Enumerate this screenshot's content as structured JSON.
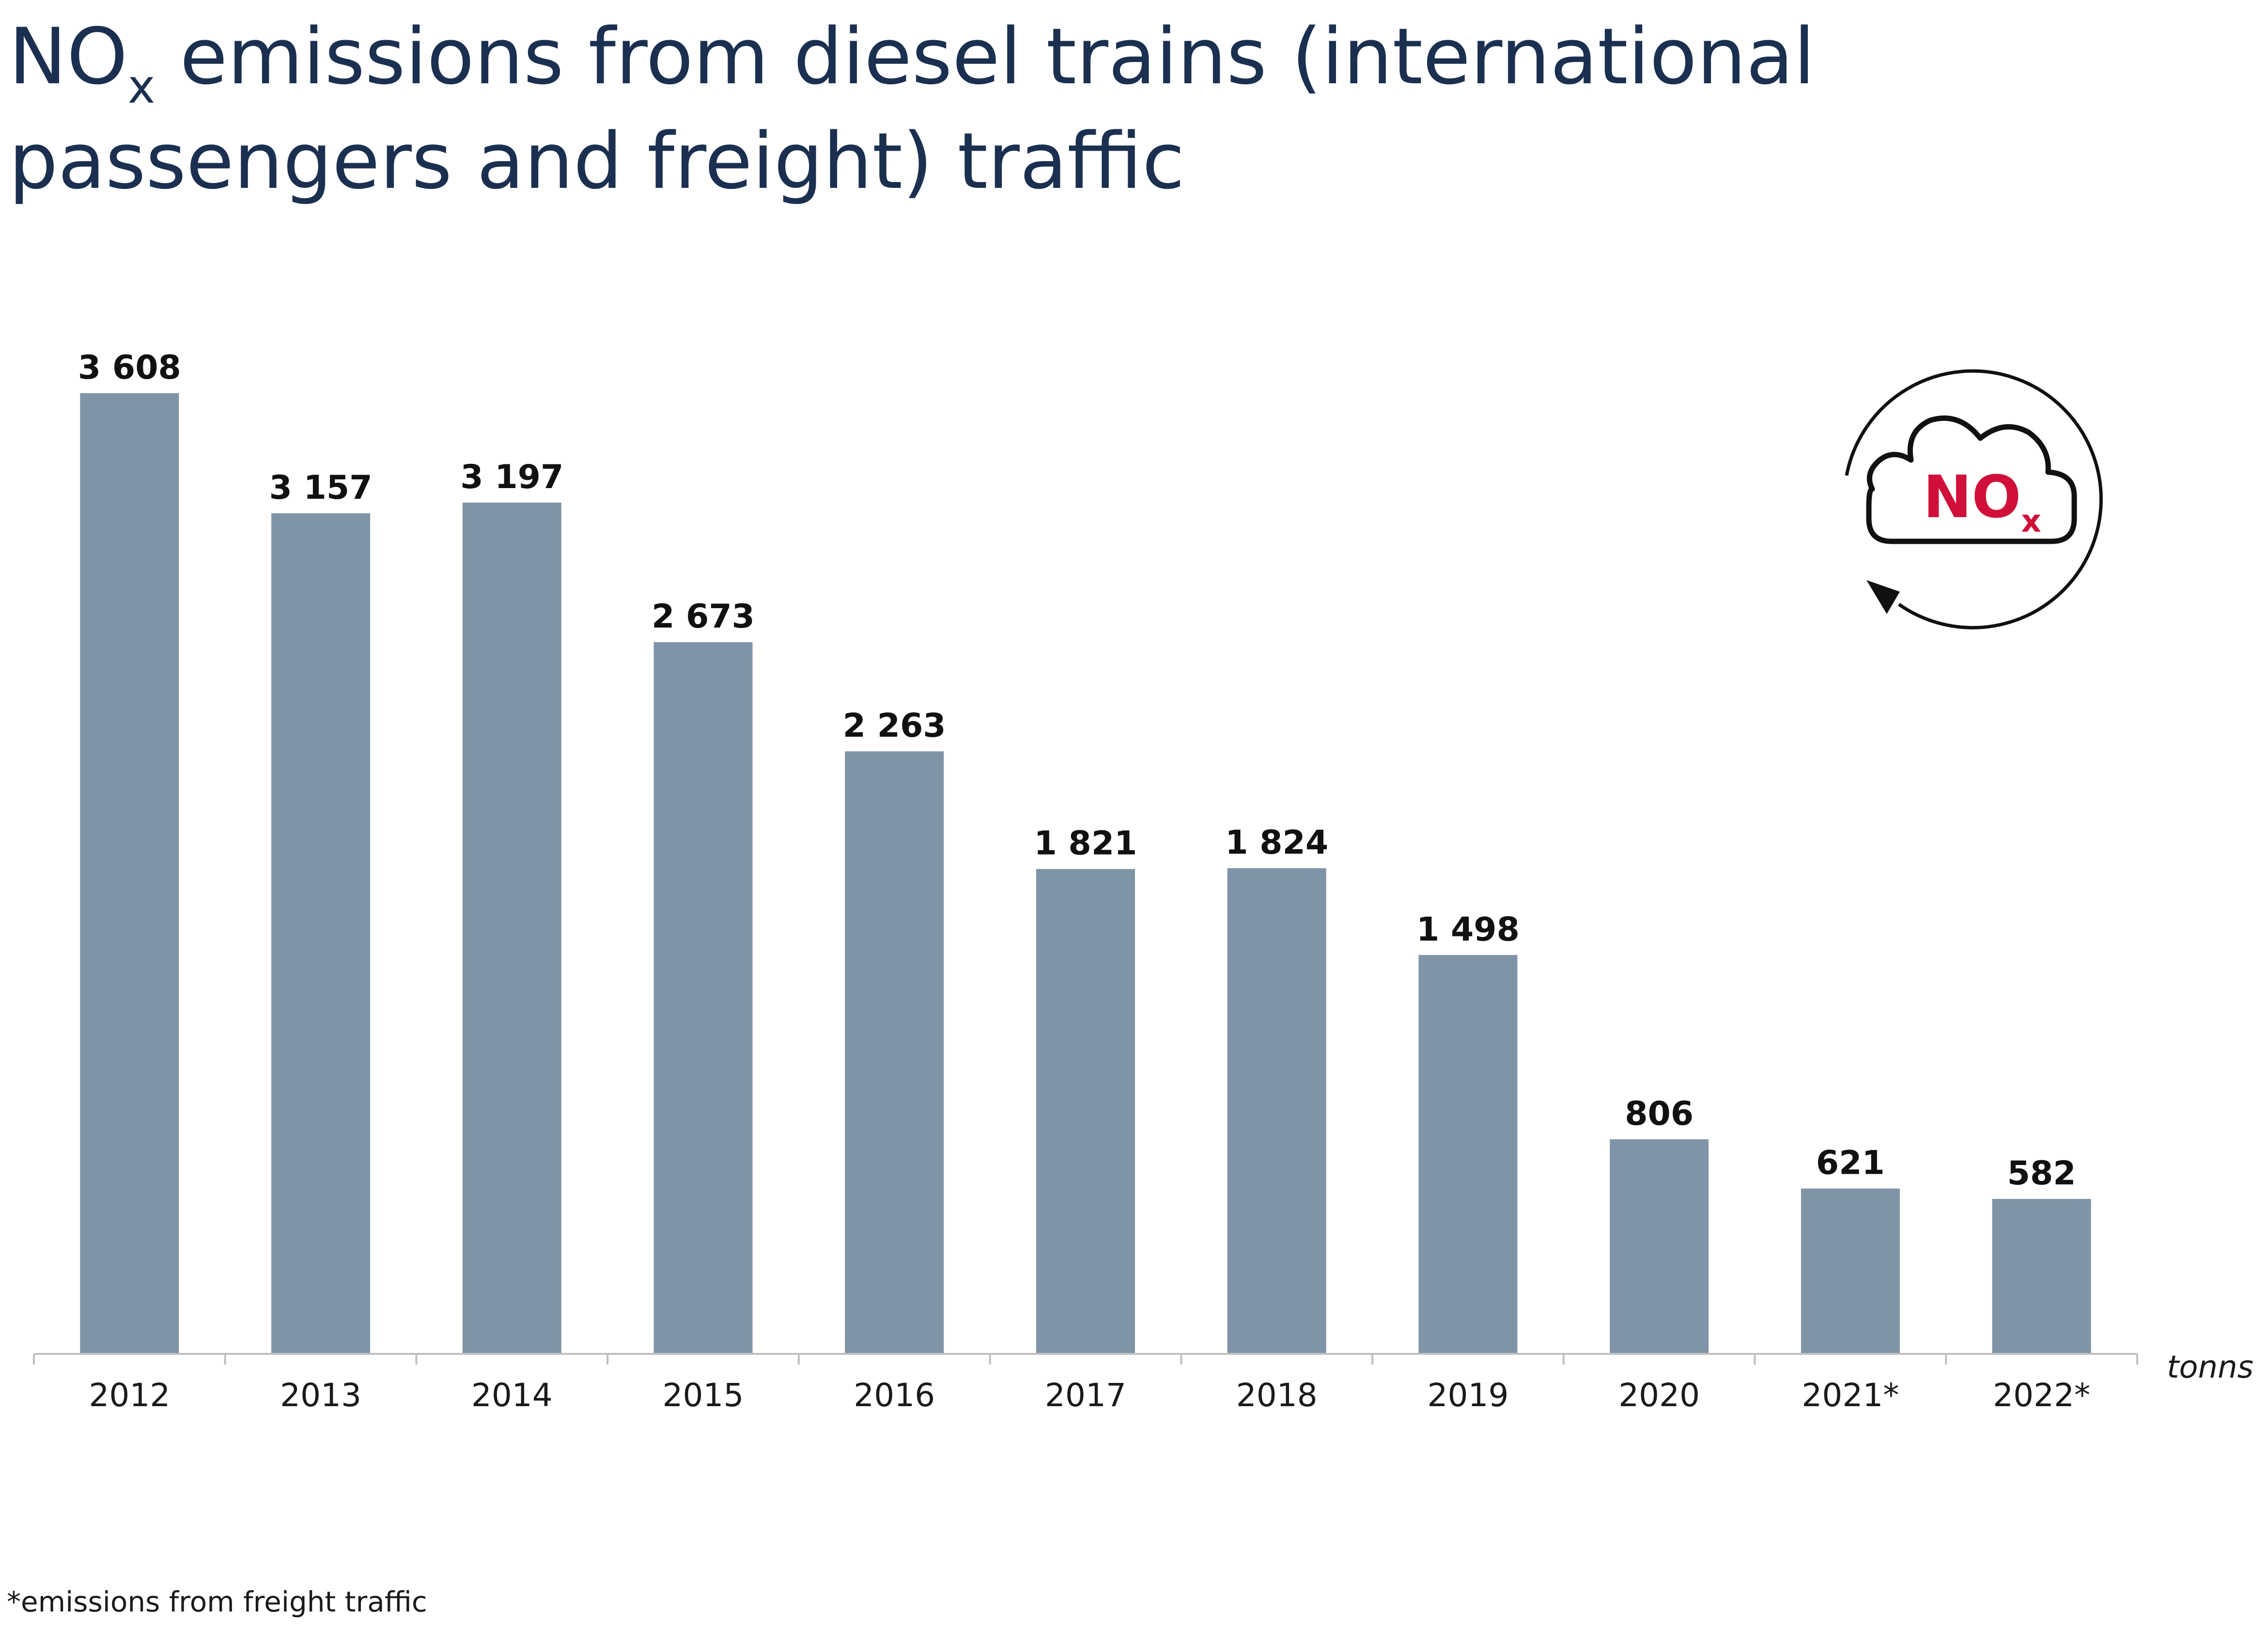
{
  "title": {
    "line1_prefix": "NO",
    "line1_subscript": "x",
    "line1_suffix": " emissions from diesel trains (international",
    "line2": "passengers and freight) traffic"
  },
  "icon": {
    "name": "nox-cloud-cycle-icon",
    "text_main": "NO",
    "text_sub": "x",
    "accent_color": "#d0103a"
  },
  "chart_data": {
    "type": "bar",
    "title": "NOx emissions from diesel trains (international passengers and freight) traffic",
    "categories": [
      "2012",
      "2013",
      "2014",
      "2015",
      "2016",
      "2017",
      "2018",
      "2019",
      "2020",
      "2021*",
      "2022*"
    ],
    "values": [
      3608,
      3157,
      3197,
      2673,
      2263,
      1821,
      1824,
      1498,
      806,
      621,
      582
    ],
    "value_labels": [
      "3 608",
      "3 157",
      "3 197",
      "2 673",
      "2 263",
      "1 821",
      "1 824",
      "1 498",
      "806",
      "621",
      "582"
    ],
    "unit": "tonns",
    "ylim": [
      0,
      3608
    ],
    "grid": false,
    "bar_color": "#8094a8",
    "legend": "none"
  },
  "footnote": "*emissions from freight traffic"
}
